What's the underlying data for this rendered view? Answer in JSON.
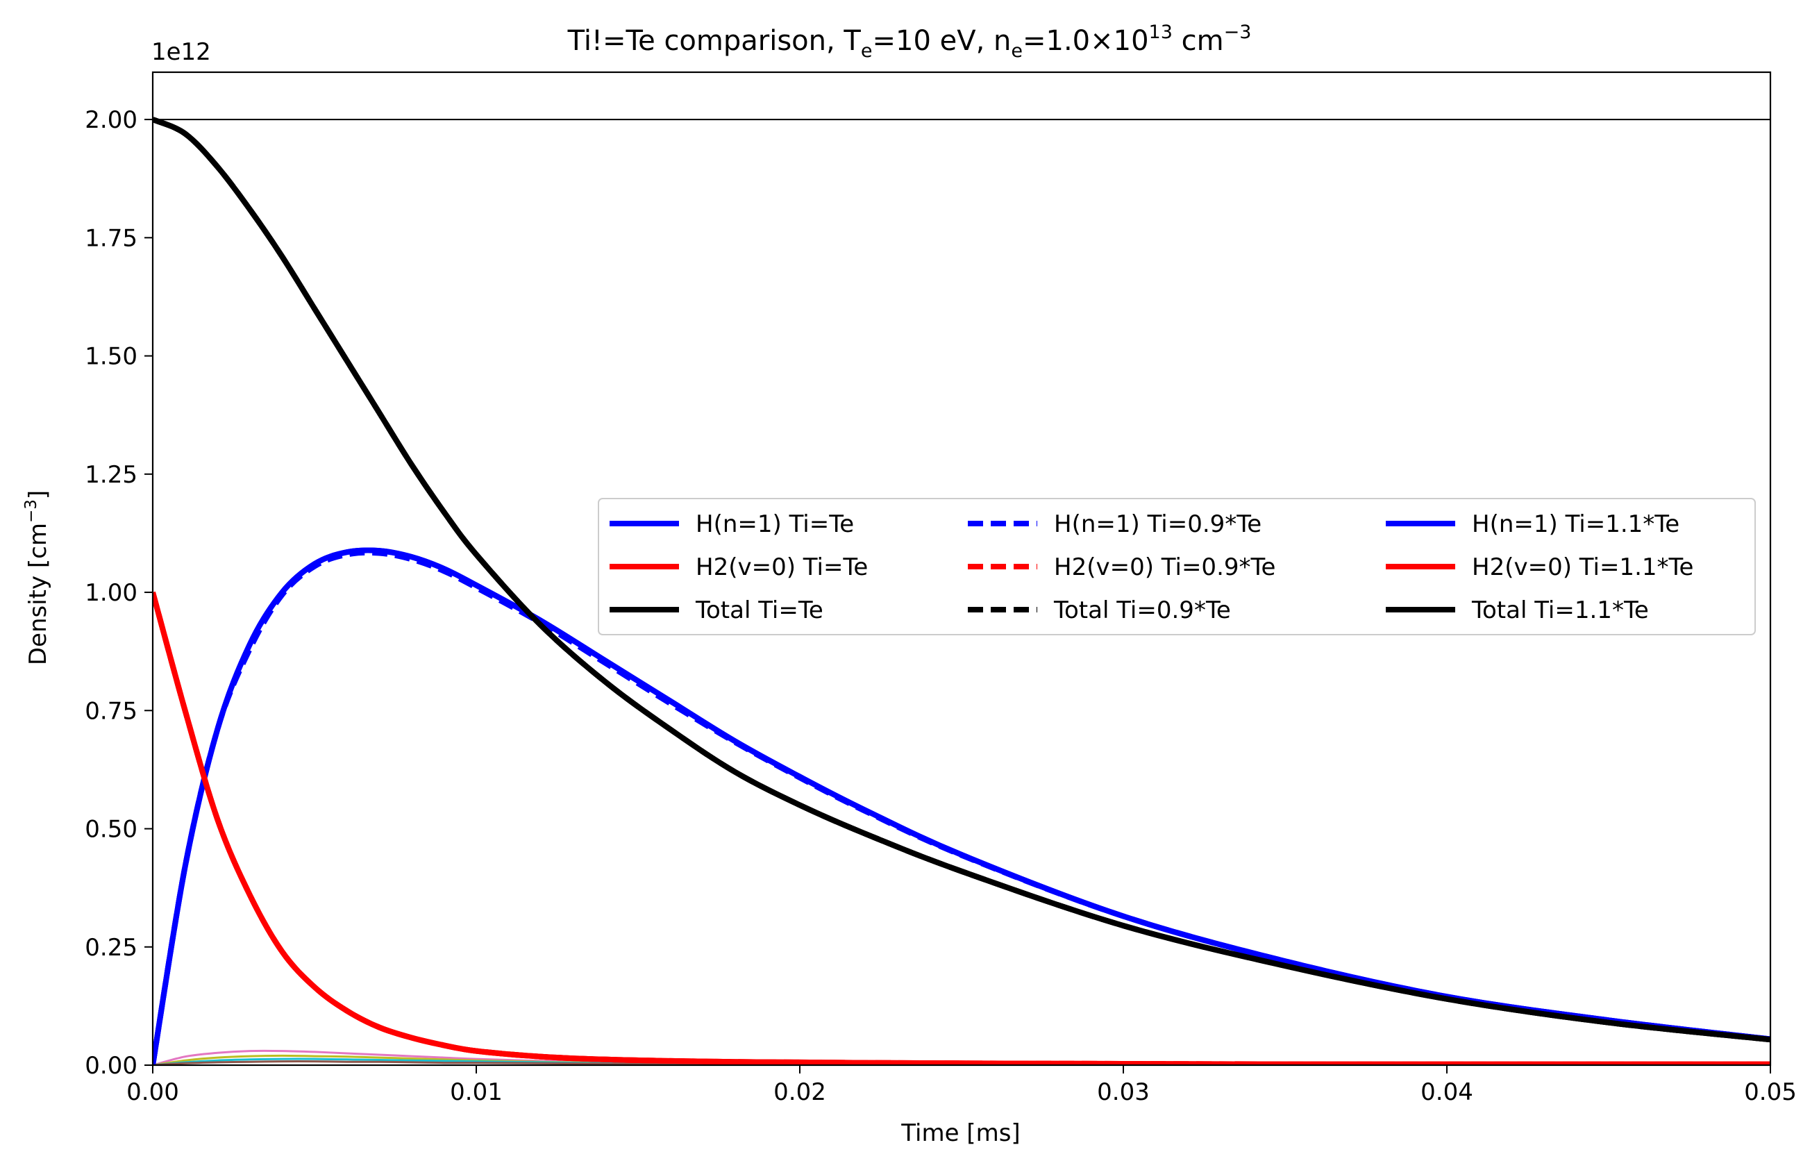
{
  "chart_data": {
    "type": "line",
    "title": {
      "prefix": "Ti!=Te comparison,  T",
      "te_sub": "e",
      "te_val": "=10 eV, n",
      "ne_sub": "e",
      "ne_val": "=1.0×10",
      "ne_exp": "13",
      "unit": " cm",
      "unit_exp": "−3"
    },
    "xlabel": "Time [ms]",
    "ylabel": {
      "text": "Density [cm",
      "exp": "−3",
      "close": "]"
    },
    "y_offset_label": "1e12",
    "xlim": [
      0,
      0.05
    ],
    "ylim": [
      0,
      2.1
    ],
    "x_ticks": [
      0.0,
      0.01,
      0.02,
      0.03,
      0.04,
      0.05
    ],
    "x_tick_labels": [
      "0.00",
      "0.01",
      "0.02",
      "0.03",
      "0.04",
      "0.05"
    ],
    "y_ticks": [
      0.0,
      0.25,
      0.5,
      0.75,
      1.0,
      1.25,
      1.5,
      1.75,
      2.0
    ],
    "y_tick_labels": [
      "0.00",
      "0.25",
      "0.50",
      "0.75",
      "1.00",
      "1.25",
      "1.50",
      "1.75",
      "2.00"
    ],
    "reference_line": {
      "y": 2.0,
      "color": "#000000"
    },
    "grid": false,
    "legend": {
      "placement": "center-right",
      "columns": 3,
      "entries": [
        {
          "label": "H(n=1) Ti=Te",
          "color": "#0000ff",
          "style": "solid"
        },
        {
          "label": "H2(v=0) Ti=Te",
          "color": "#ff0000",
          "style": "solid"
        },
        {
          "label": "Total Ti=Te",
          "color": "#000000",
          "style": "solid"
        },
        {
          "label": "H(n=1) Ti=0.9*Te",
          "color": "#0000ff",
          "style": "dashed"
        },
        {
          "label": "H2(v=0) Ti=0.9*Te",
          "color": "#ff0000",
          "style": "dashed"
        },
        {
          "label": "Total Ti=0.9*Te",
          "color": "#000000",
          "style": "dashed"
        },
        {
          "label": "H(n=1) Ti=1.1*Te",
          "color": "#0000ff",
          "style": "solid"
        },
        {
          "label": "H2(v=0) Ti=1.1*Te",
          "color": "#ff0000",
          "style": "solid"
        },
        {
          "label": "Total Ti=1.1*Te",
          "color": "#000000",
          "style": "solid"
        }
      ]
    },
    "x": [
      0,
      0.001,
      0.002,
      0.003,
      0.004,
      0.005,
      0.006,
      0.007,
      0.008,
      0.009,
      0.01,
      0.012,
      0.014,
      0.016,
      0.018,
      0.02,
      0.022,
      0.025,
      0.03,
      0.035,
      0.04,
      0.045,
      0.05
    ],
    "series": [
      {
        "name": "H(n=1) Ti=Te",
        "color": "#0000ff",
        "style": "solid",
        "values": [
          0,
          0.42,
          0.71,
          0.89,
          1.0,
          1.06,
          1.085,
          1.088,
          1.075,
          1.05,
          1.015,
          0.94,
          0.855,
          0.77,
          0.685,
          0.61,
          0.54,
          0.445,
          0.315,
          0.22,
          0.145,
          0.095,
          0.055
        ]
      },
      {
        "name": "H(n=1) Ti=0.9*Te",
        "color": "#0000ff",
        "style": "dashed",
        "values": [
          0,
          0.42,
          0.71,
          0.88,
          0.995,
          1.055,
          1.08,
          1.083,
          1.07,
          1.045,
          1.01,
          0.935,
          0.85,
          0.765,
          0.683,
          0.608,
          0.538,
          0.444,
          0.315,
          0.22,
          0.145,
          0.095,
          0.055
        ]
      },
      {
        "name": "H(n=1) Ti=1.1*Te",
        "color": "#0000ff",
        "style": "solid",
        "values": [
          0,
          0.42,
          0.71,
          0.89,
          1.0,
          1.06,
          1.085,
          1.088,
          1.075,
          1.05,
          1.015,
          0.94,
          0.855,
          0.77,
          0.685,
          0.61,
          0.54,
          0.445,
          0.315,
          0.22,
          0.145,
          0.095,
          0.055
        ]
      },
      {
        "name": "H2(v=0) Ti=Te",
        "color": "#ff0000",
        "style": "solid",
        "values": [
          1.0,
          0.75,
          0.52,
          0.36,
          0.24,
          0.165,
          0.115,
          0.08,
          0.058,
          0.042,
          0.03,
          0.018,
          0.012,
          0.009,
          0.007,
          0.006,
          0.005,
          0.004,
          0.003,
          0.002,
          0.002,
          0.002,
          0.002
        ]
      },
      {
        "name": "H2(v=0) Ti=0.9*Te",
        "color": "#ff0000",
        "style": "dashed",
        "values": [
          1.0,
          0.75,
          0.52,
          0.36,
          0.24,
          0.165,
          0.115,
          0.08,
          0.058,
          0.042,
          0.03,
          0.018,
          0.012,
          0.009,
          0.007,
          0.006,
          0.005,
          0.004,
          0.003,
          0.002,
          0.002,
          0.002,
          0.002
        ]
      },
      {
        "name": "H2(v=0) Ti=1.1*Te",
        "color": "#ff0000",
        "style": "solid",
        "values": [
          1.0,
          0.75,
          0.52,
          0.36,
          0.24,
          0.165,
          0.115,
          0.08,
          0.058,
          0.042,
          0.03,
          0.018,
          0.012,
          0.009,
          0.007,
          0.006,
          0.005,
          0.004,
          0.003,
          0.002,
          0.002,
          0.002,
          0.002
        ]
      },
      {
        "name": "Total Ti=Te",
        "color": "#000000",
        "style": "solid",
        "values": [
          2.0,
          1.97,
          1.9,
          1.81,
          1.71,
          1.6,
          1.49,
          1.38,
          1.27,
          1.17,
          1.08,
          0.93,
          0.81,
          0.71,
          0.62,
          0.55,
          0.49,
          0.41,
          0.295,
          0.21,
          0.14,
          0.09,
          0.054
        ]
      },
      {
        "name": "Total Ti=0.9*Te",
        "color": "#000000",
        "style": "dashed",
        "values": [
          2.0,
          1.97,
          1.9,
          1.81,
          1.71,
          1.6,
          1.49,
          1.38,
          1.27,
          1.17,
          1.08,
          0.93,
          0.81,
          0.71,
          0.62,
          0.55,
          0.49,
          0.41,
          0.295,
          0.21,
          0.14,
          0.09,
          0.054
        ]
      },
      {
        "name": "Total Ti=1.1*Te",
        "color": "#000000",
        "style": "solid",
        "values": [
          2.0,
          1.97,
          1.9,
          1.81,
          1.71,
          1.6,
          1.49,
          1.38,
          1.27,
          1.17,
          1.08,
          0.93,
          0.81,
          0.71,
          0.62,
          0.55,
          0.49,
          0.41,
          0.295,
          0.21,
          0.14,
          0.09,
          0.054
        ]
      }
    ],
    "minor_series": [
      {
        "color": "#e377c2",
        "values": [
          0,
          0.018,
          0.026,
          0.03,
          0.03,
          0.028,
          0.025,
          0.022,
          0.019,
          0.016,
          0.013,
          0.009,
          0.006,
          0.004,
          0.003,
          0.002,
          0.001,
          0.001,
          0.0005,
          0,
          0,
          0,
          0
        ]
      },
      {
        "color": "#bcbd22",
        "values": [
          0,
          0.01,
          0.016,
          0.019,
          0.02,
          0.019,
          0.018,
          0.016,
          0.014,
          0.012,
          0.01,
          0.007,
          0.005,
          0.003,
          0.002,
          0.0015,
          0.001,
          0.0005,
          0,
          0,
          0,
          0,
          0
        ]
      },
      {
        "color": "#17becf",
        "values": [
          0,
          0.006,
          0.01,
          0.012,
          0.013,
          0.013,
          0.012,
          0.011,
          0.01,
          0.009,
          0.008,
          0.006,
          0.004,
          0.003,
          0.002,
          0.001,
          0.001,
          0.0005,
          0,
          0,
          0,
          0,
          0
        ]
      },
      {
        "color": "#8c564b",
        "values": [
          0,
          0.004,
          0.006,
          0.007,
          0.008,
          0.008,
          0.007,
          0.007,
          0.006,
          0.005,
          0.005,
          0.004,
          0.003,
          0.002,
          0.001,
          0.001,
          0.0005,
          0,
          0,
          0,
          0,
          0,
          0
        ]
      }
    ]
  }
}
